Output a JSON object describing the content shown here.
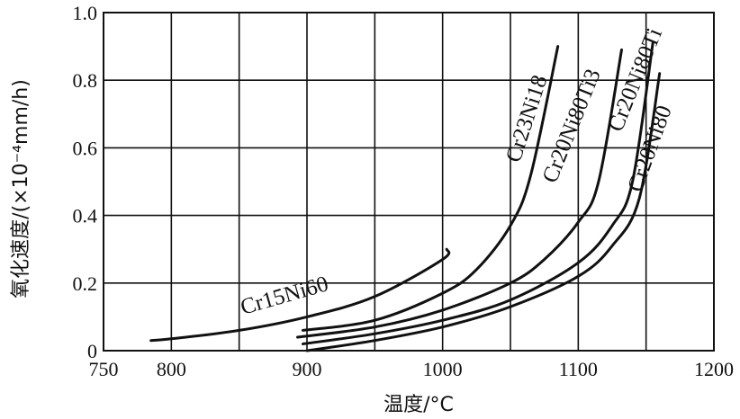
{
  "chart_data": {
    "type": "line",
    "xlabel": "温度/°C",
    "ylabel": "氧化速度/(×10⁻⁴mm/h)",
    "xlim": [
      750,
      1200
    ],
    "ylim": [
      0,
      1.0
    ],
    "x_ticks": [
      "750",
      "800",
      "900",
      "1000",
      "1100",
      "1200"
    ],
    "y_ticks": [
      "0",
      "0.2",
      "0.4",
      "0.6",
      "0.8",
      "1.0"
    ],
    "grid": true,
    "series": [
      {
        "name": "Cr15Ni60",
        "x": [
          785,
          800,
          850,
          900,
          950,
          1000,
          1003
        ],
        "y": [
          0.03,
          0.035,
          0.06,
          0.1,
          0.16,
          0.27,
          0.3
        ]
      },
      {
        "name": "Cr23Ni18",
        "x": [
          897,
          950,
          1000,
          1025,
          1050,
          1065,
          1085
        ],
        "y": [
          0.06,
          0.09,
          0.17,
          0.24,
          0.37,
          0.52,
          0.9
        ]
      },
      {
        "name": "Cr20Ni80Ti3",
        "x": [
          893,
          950,
          1000,
          1050,
          1075,
          1100,
          1115,
          1132
        ],
        "y": [
          0.04,
          0.07,
          0.12,
          0.2,
          0.27,
          0.38,
          0.5,
          0.89
        ]
      },
      {
        "name": "Cr20Ni80Ti",
        "x": [
          897,
          950,
          1000,
          1050,
          1100,
          1125,
          1140,
          1155
        ],
        "y": [
          0.02,
          0.05,
          0.09,
          0.15,
          0.26,
          0.37,
          0.5,
          0.91
        ]
      },
      {
        "name": "Cr20Ni80",
        "x": [
          900,
          950,
          1000,
          1050,
          1100,
          1125,
          1145,
          1160
        ],
        "y": [
          0.0,
          0.03,
          0.07,
          0.13,
          0.22,
          0.31,
          0.45,
          0.82
        ]
      }
    ]
  }
}
